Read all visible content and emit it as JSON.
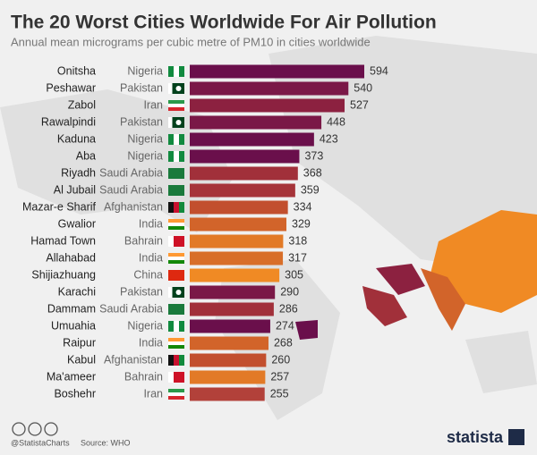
{
  "chart_data": {
    "type": "bar",
    "orientation": "horizontal",
    "title": "The 20 Worst Cities Worldwide For Air Pollution",
    "subtitle": "Annual mean micrograms per cubic metre of PM10 in cities worldwide",
    "categories": [
      "Onitsha",
      "Peshawar",
      "Zabol",
      "Rawalpindi",
      "Kaduna",
      "Aba",
      "Riyadh",
      "Al Jubail",
      "Mazar-e Sharif",
      "Gwalior",
      "Hamad Town",
      "Allahabad",
      "Shijiazhuang",
      "Karachi",
      "Dammam",
      "Umuahia",
      "Raipur",
      "Kabul",
      "Ma'ameer",
      "Boshehr"
    ],
    "countries": [
      "Nigeria",
      "Pakistan",
      "Iran",
      "Pakistan",
      "Nigeria",
      "Nigeria",
      "Saudi Arabia",
      "Saudi Arabia",
      "Afghanistan",
      "India",
      "Bahrain",
      "India",
      "China",
      "Pakistan",
      "Saudi Arabia",
      "Nigeria",
      "India",
      "Afghanistan",
      "Bahrain",
      "Iran"
    ],
    "values": [
      594,
      540,
      527,
      448,
      423,
      373,
      368,
      359,
      334,
      329,
      318,
      317,
      305,
      290,
      286,
      274,
      268,
      260,
      257,
      255
    ],
    "colors": [
      "#6a0f4b",
      "#7a1847",
      "#8c2140",
      "#7a1847",
      "#6a0f4b",
      "#6a0f4b",
      "#a1303a",
      "#a6343a",
      "#c24f2e",
      "#d2642a",
      "#e27a27",
      "#d86e29",
      "#f08a24",
      "#7a1847",
      "#a1303a",
      "#6a0f4b",
      "#d2642a",
      "#c24f2e",
      "#e27a27",
      "#b2413a"
    ],
    "source": "Source: WHO",
    "handle": "@StatistaCharts",
    "brand": "statista"
  }
}
